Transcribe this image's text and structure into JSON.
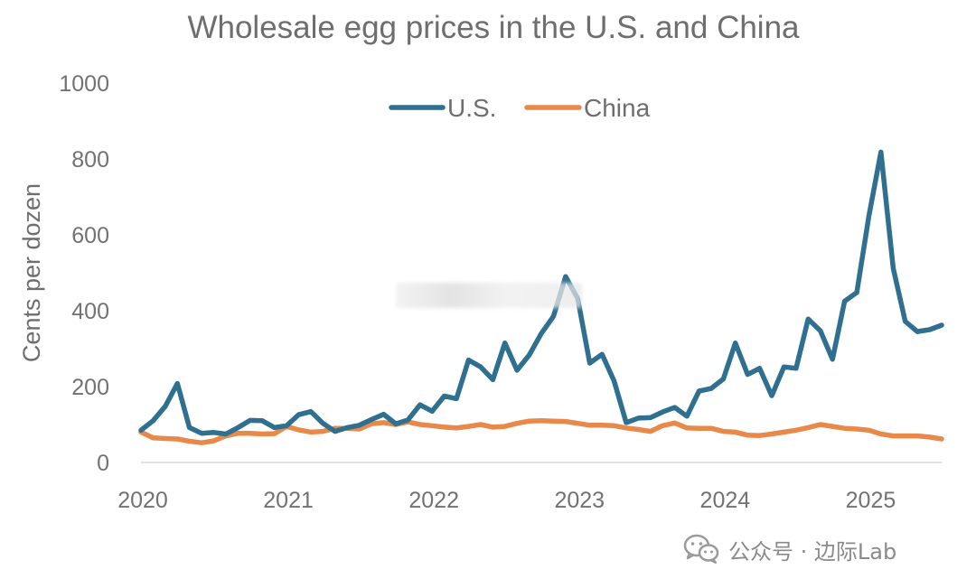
{
  "chart_data": {
    "type": "line",
    "title": "Wholesale egg prices in the U.S. and China",
    "xlabel": "",
    "ylabel": "Cents per dozen",
    "ylim": [
      0,
      1000
    ],
    "yticks": [
      0,
      200,
      400,
      600,
      800,
      1000
    ],
    "xlim": [
      2020,
      2025.5
    ],
    "xticks": [
      2020,
      2021,
      2022,
      2023,
      2024,
      2025
    ],
    "xtick_labels": [
      "2020",
      "2021",
      "2022",
      "2023",
      "2024",
      "2025"
    ],
    "legend_position": "top-center",
    "grid": false,
    "series": [
      {
        "name": "U.S.",
        "color": "#2f6f8f",
        "points": [
          [
            2020.0,
            85
          ],
          [
            2020.083,
            110
          ],
          [
            2020.167,
            148
          ],
          [
            2020.25,
            208
          ],
          [
            2020.333,
            92
          ],
          [
            2020.417,
            77
          ],
          [
            2020.5,
            79
          ],
          [
            2020.583,
            75
          ],
          [
            2020.667,
            92
          ],
          [
            2020.75,
            111
          ],
          [
            2020.833,
            110
          ],
          [
            2020.917,
            92
          ],
          [
            2021.0,
            97
          ],
          [
            2021.083,
            126
          ],
          [
            2021.167,
            134
          ],
          [
            2021.25,
            103
          ],
          [
            2021.333,
            82
          ],
          [
            2021.417,
            92
          ],
          [
            2021.5,
            98
          ],
          [
            2021.583,
            113
          ],
          [
            2021.667,
            127
          ],
          [
            2021.75,
            102
          ],
          [
            2021.833,
            112
          ],
          [
            2021.917,
            152
          ],
          [
            2022.0,
            135
          ],
          [
            2022.083,
            175
          ],
          [
            2022.167,
            168
          ],
          [
            2022.25,
            270
          ],
          [
            2022.333,
            252
          ],
          [
            2022.417,
            218
          ],
          [
            2022.5,
            315
          ],
          [
            2022.583,
            243
          ],
          [
            2022.667,
            283
          ],
          [
            2022.75,
            340
          ],
          [
            2022.833,
            385
          ],
          [
            2022.917,
            490
          ],
          [
            2023.0,
            432
          ],
          [
            2023.083,
            262
          ],
          [
            2023.167,
            285
          ],
          [
            2023.25,
            215
          ],
          [
            2023.333,
            105
          ],
          [
            2023.417,
            117
          ],
          [
            2023.5,
            118
          ],
          [
            2023.583,
            133
          ],
          [
            2023.667,
            145
          ],
          [
            2023.75,
            122
          ],
          [
            2023.833,
            188
          ],
          [
            2023.917,
            195
          ],
          [
            2024.0,
            220
          ],
          [
            2024.083,
            315
          ],
          [
            2024.167,
            232
          ],
          [
            2024.25,
            248
          ],
          [
            2024.333,
            176
          ],
          [
            2024.417,
            252
          ],
          [
            2024.5,
            248
          ],
          [
            2024.583,
            378
          ],
          [
            2024.667,
            347
          ],
          [
            2024.75,
            272
          ],
          [
            2024.833,
            425
          ],
          [
            2024.917,
            448
          ],
          [
            2025.0,
            650
          ],
          [
            2025.083,
            818
          ],
          [
            2025.167,
            512
          ],
          [
            2025.25,
            372
          ],
          [
            2025.333,
            345
          ],
          [
            2025.417,
            350
          ],
          [
            2025.5,
            362
          ]
        ]
      },
      {
        "name": "China",
        "color": "#e8894a",
        "points": [
          [
            2020.0,
            80
          ],
          [
            2020.083,
            65
          ],
          [
            2020.167,
            63
          ],
          [
            2020.25,
            62
          ],
          [
            2020.333,
            56
          ],
          [
            2020.417,
            52
          ],
          [
            2020.5,
            57
          ],
          [
            2020.583,
            70
          ],
          [
            2020.667,
            77
          ],
          [
            2020.75,
            77
          ],
          [
            2020.833,
            75
          ],
          [
            2020.917,
            76
          ],
          [
            2021.0,
            95
          ],
          [
            2021.083,
            86
          ],
          [
            2021.167,
            80
          ],
          [
            2021.25,
            82
          ],
          [
            2021.333,
            90
          ],
          [
            2021.417,
            90
          ],
          [
            2021.5,
            88
          ],
          [
            2021.583,
            102
          ],
          [
            2021.667,
            105
          ],
          [
            2021.75,
            100
          ],
          [
            2021.833,
            107
          ],
          [
            2021.917,
            100
          ],
          [
            2022.0,
            97
          ],
          [
            2022.083,
            93
          ],
          [
            2022.167,
            91
          ],
          [
            2022.25,
            95
          ],
          [
            2022.333,
            100
          ],
          [
            2022.417,
            93
          ],
          [
            2022.5,
            95
          ],
          [
            2022.583,
            103
          ],
          [
            2022.667,
            109
          ],
          [
            2022.75,
            110
          ],
          [
            2022.833,
            109
          ],
          [
            2022.917,
            108
          ],
          [
            2023.0,
            103
          ],
          [
            2023.083,
            98
          ],
          [
            2023.167,
            98
          ],
          [
            2023.25,
            97
          ],
          [
            2023.333,
            91
          ],
          [
            2023.417,
            87
          ],
          [
            2023.5,
            82
          ],
          [
            2023.583,
            97
          ],
          [
            2023.667,
            104
          ],
          [
            2023.75,
            91
          ],
          [
            2023.833,
            90
          ],
          [
            2023.917,
            90
          ],
          [
            2024.0,
            82
          ],
          [
            2024.083,
            80
          ],
          [
            2024.167,
            72
          ],
          [
            2024.25,
            71
          ],
          [
            2024.333,
            75
          ],
          [
            2024.417,
            80
          ],
          [
            2024.5,
            85
          ],
          [
            2024.583,
            92
          ],
          [
            2024.667,
            100
          ],
          [
            2024.75,
            95
          ],
          [
            2024.833,
            90
          ],
          [
            2024.917,
            88
          ],
          [
            2025.0,
            85
          ],
          [
            2025.083,
            75
          ],
          [
            2025.167,
            70
          ],
          [
            2025.25,
            70
          ],
          [
            2025.333,
            70
          ],
          [
            2025.417,
            67
          ],
          [
            2025.5,
            62
          ]
        ]
      }
    ]
  },
  "watermark": {
    "text": "公众号 · 边际Lab",
    "icon": "wechat-icon"
  }
}
